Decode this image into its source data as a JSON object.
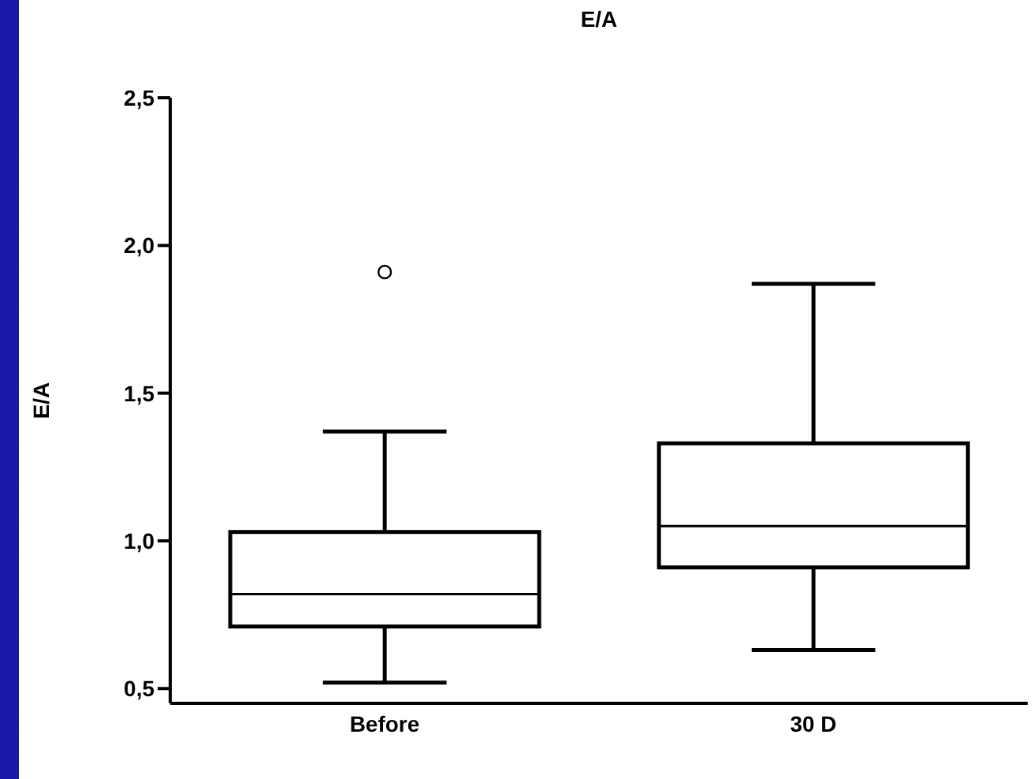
{
  "chart_data": {
    "type": "box",
    "title": "E/A",
    "ylabel": "E/A",
    "categories": [
      "Before",
      "30 D"
    ],
    "boxes": [
      {
        "low": 0.52,
        "q1": 0.71,
        "median": 0.82,
        "q3": 1.03,
        "high": 1.37,
        "outliers": [
          1.91
        ]
      },
      {
        "low": 0.63,
        "q1": 0.91,
        "median": 1.05,
        "q3": 1.33,
        "high": 1.87
      }
    ],
    "ylim": [
      0.45,
      2.5
    ],
    "yticks": [
      {
        "value": 0.5,
        "label": "0,5"
      },
      {
        "value": 1.0,
        "label": "1,0"
      },
      {
        "value": 1.5,
        "label": "1,5"
      },
      {
        "value": 2.0,
        "label": "2,0"
      },
      {
        "value": 2.5,
        "label": "2,5"
      }
    ],
    "grid": false,
    "legend": false
  }
}
